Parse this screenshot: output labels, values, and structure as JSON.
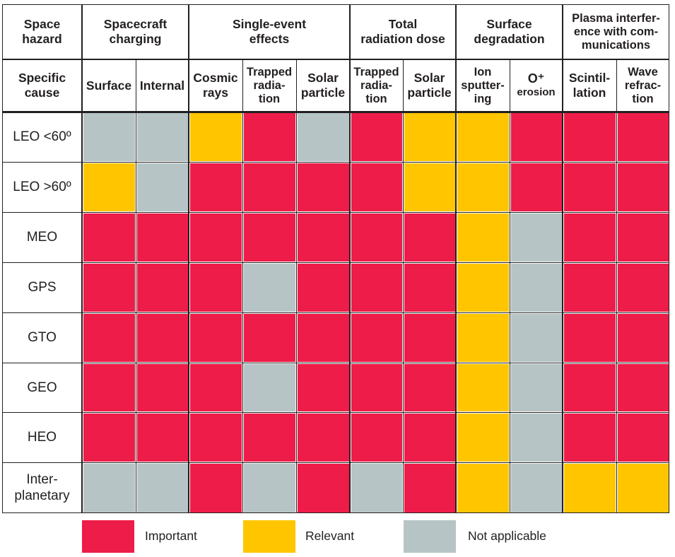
{
  "chart_data": {
    "type": "table",
    "header_top": {
      "label": "Space\nhazard",
      "groups": [
        {
          "label": "Spacecraft\ncharging"
        },
        {
          "label": "Single-event\neffects"
        },
        {
          "label": "Total\nradiation dose"
        },
        {
          "label": "Surface\ndegradation"
        },
        {
          "label": "Plasma interfer-\nence with com-\nmunications"
        }
      ]
    },
    "header_sub": {
      "label": "Specific\ncause",
      "columns": [
        "Surface",
        "Internal",
        "Cosmic\nrays",
        "Trapped\nradia-\ntion",
        "Solar\nparticle",
        "Trapped\nradia-\ntion",
        "Solar\nparticle",
        "Ion\nsputter-\ning",
        "O⁺\nerosion",
        "Scintil-\nlation",
        "Wave\nrefrac-\ntion"
      ]
    },
    "rows": [
      {
        "label": "LEO <60º",
        "values": [
          "not_applicable",
          "not_applicable",
          "relevant",
          "important",
          "not_applicable",
          "important",
          "relevant",
          "relevant",
          "important",
          "important",
          "important"
        ]
      },
      {
        "label": "LEO >60º",
        "values": [
          "relevant",
          "not_applicable",
          "important",
          "important",
          "important",
          "important",
          "relevant",
          "relevant",
          "important",
          "important",
          "important"
        ]
      },
      {
        "label": "MEO",
        "values": [
          "important",
          "important",
          "important",
          "important",
          "important",
          "important",
          "important",
          "relevant",
          "not_applicable",
          "important",
          "important"
        ]
      },
      {
        "label": "GPS",
        "values": [
          "important",
          "important",
          "important",
          "not_applicable",
          "important",
          "important",
          "important",
          "relevant",
          "not_applicable",
          "important",
          "important"
        ]
      },
      {
        "label": "GTO",
        "values": [
          "important",
          "important",
          "important",
          "important",
          "important",
          "important",
          "important",
          "relevant",
          "not_applicable",
          "important",
          "important"
        ]
      },
      {
        "label": "GEO",
        "values": [
          "important",
          "important",
          "important",
          "not_applicable",
          "important",
          "important",
          "important",
          "relevant",
          "not_applicable",
          "important",
          "important"
        ]
      },
      {
        "label": "HEO",
        "values": [
          "important",
          "important",
          "important",
          "important",
          "important",
          "important",
          "important",
          "relevant",
          "not_applicable",
          "important",
          "important"
        ]
      },
      {
        "label": "Inter-\nplanetary",
        "values": [
          "not_applicable",
          "not_applicable",
          "important",
          "not_applicable",
          "important",
          "not_applicable",
          "important",
          "relevant",
          "not_applicable",
          "relevant",
          "relevant"
        ]
      }
    ],
    "legend": [
      {
        "key": "important",
        "label": "Important",
        "color": "#ee1c48"
      },
      {
        "key": "relevant",
        "label": "Relevant",
        "color": "#ffc600"
      },
      {
        "key": "not_applicable",
        "label": "Not applicable",
        "color": "#b6c4c5"
      }
    ]
  }
}
